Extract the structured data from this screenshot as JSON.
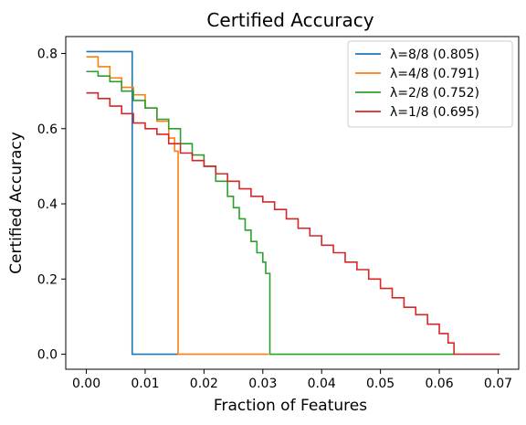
{
  "chart_data": {
    "type": "line",
    "title": "Certified Accuracy",
    "xlabel": "Fraction of Features",
    "ylabel": "Certified Accuracy",
    "xlim": [
      -0.0035,
      0.0735
    ],
    "ylim": [
      -0.04,
      0.845
    ],
    "xticks": [
      0.0,
      0.01,
      0.02,
      0.03,
      0.04,
      0.05,
      0.06,
      0.07
    ],
    "xtick_labels": [
      "0.00",
      "0.01",
      "0.02",
      "0.03",
      "0.04",
      "0.05",
      "0.06",
      "0.07"
    ],
    "yticks": [
      0.0,
      0.2,
      0.4,
      0.6,
      0.8
    ],
    "ytick_labels": [
      "0.0",
      "0.2",
      "0.4",
      "0.6",
      "0.8"
    ],
    "grid": false,
    "legend_position": "top-right",
    "series": [
      {
        "name": "λ=8/8 (0.805)",
        "color": "#1f77b4",
        "step": true,
        "x": [
          0.0,
          0.0078,
          0.0078,
          0.0156
        ],
        "y": [
          0.805,
          0.805,
          0.0,
          0.0
        ]
      },
      {
        "name": "λ=4/8 (0.791)",
        "color": "#ff7f0e",
        "step": true,
        "x": [
          0.0,
          0.002,
          0.004,
          0.006,
          0.008,
          0.01,
          0.012,
          0.014,
          0.015,
          0.0156,
          0.0156,
          0.031
        ],
        "y": [
          0.791,
          0.765,
          0.735,
          0.71,
          0.69,
          0.655,
          0.62,
          0.575,
          0.54,
          0.52,
          0.0,
          0.0
        ]
      },
      {
        "name": "λ=2/8 (0.752)",
        "color": "#2ca02c",
        "step": true,
        "x": [
          0.0,
          0.002,
          0.004,
          0.006,
          0.008,
          0.01,
          0.012,
          0.014,
          0.016,
          0.018,
          0.02,
          0.022,
          0.024,
          0.025,
          0.026,
          0.027,
          0.028,
          0.029,
          0.03,
          0.0305,
          0.031,
          0.0312,
          0.0312,
          0.0625
        ],
        "y": [
          0.752,
          0.74,
          0.725,
          0.7,
          0.675,
          0.655,
          0.625,
          0.6,
          0.56,
          0.53,
          0.5,
          0.46,
          0.42,
          0.39,
          0.36,
          0.33,
          0.3,
          0.27,
          0.245,
          0.215,
          0.215,
          0.215,
          0.0,
          0.0
        ]
      },
      {
        "name": "λ=1/8 (0.695)",
        "color": "#d62728",
        "step": true,
        "x": [
          0.0,
          0.002,
          0.004,
          0.006,
          0.008,
          0.01,
          0.012,
          0.014,
          0.016,
          0.018,
          0.02,
          0.022,
          0.024,
          0.026,
          0.028,
          0.03,
          0.032,
          0.034,
          0.036,
          0.038,
          0.04,
          0.042,
          0.044,
          0.046,
          0.048,
          0.05,
          0.052,
          0.054,
          0.056,
          0.058,
          0.06,
          0.0615,
          0.0625,
          0.0625,
          0.0703
        ],
        "y": [
          0.695,
          0.68,
          0.66,
          0.64,
          0.615,
          0.6,
          0.585,
          0.56,
          0.535,
          0.515,
          0.5,
          0.48,
          0.46,
          0.44,
          0.42,
          0.405,
          0.385,
          0.36,
          0.335,
          0.315,
          0.29,
          0.27,
          0.245,
          0.225,
          0.2,
          0.175,
          0.15,
          0.125,
          0.105,
          0.08,
          0.055,
          0.03,
          0.03,
          0.0,
          0.0
        ]
      }
    ]
  }
}
